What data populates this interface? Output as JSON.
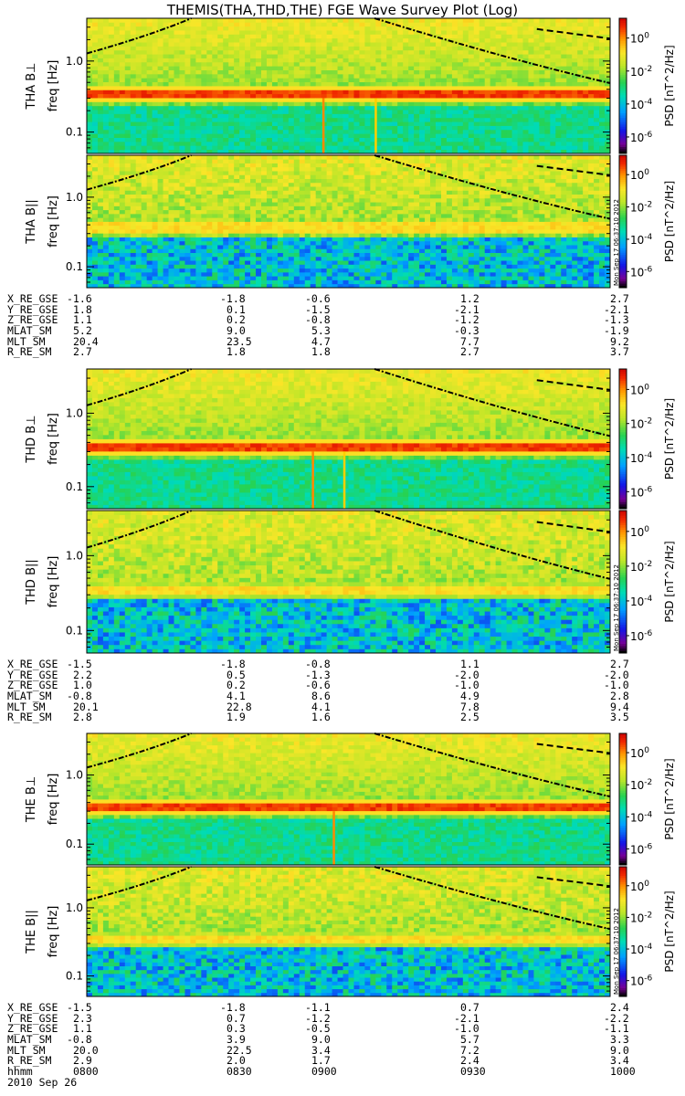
{
  "chart_data": {
    "type": "heatmap",
    "title": "THEMIS(THA,THD,THE) FGE Wave Survey Plot (Log)",
    "date_label": "2010 Sep 26",
    "time_axis_label": "hhmm",
    "time_ticks": [
      "0800",
      "0830",
      "0900",
      "0930",
      "1000"
    ],
    "freq_axis_label": "freq [Hz]",
    "freq_ticks": [
      "1.0",
      "0.1"
    ],
    "freq_range_hz": [
      0.05,
      4.0
    ],
    "colorbar": {
      "label": "PSD [nT^2/Hz]",
      "ticks": [
        "10^0",
        "10^-2",
        "10^-4",
        "10^-6"
      ],
      "range_log10": [
        -7,
        1.2
      ],
      "scale": "rainbow"
    },
    "stamp": "Mon Sep 17 06:37:10 2012",
    "probes": [
      {
        "id": "THA",
        "panels": [
          {
            "name": "THA B⊥",
            "ylabel": "THA B⊥",
            "band_hz": 0.33,
            "band_intensity": "strong",
            "spikes": [
              0.45,
              0.55
            ],
            "lowfreq_level": "mid"
          },
          {
            "name": "THA B||",
            "ylabel": "THA B||",
            "band_hz": 0.37,
            "band_intensity": "weak",
            "spikes": [],
            "lowfreq_level": "low"
          }
        ],
        "ephemeris": [
          {
            "label": "X_RE_GSE",
            "values": [
              "-1.6",
              "-1.8",
              "-0.6",
              "1.2",
              "2.7"
            ]
          },
          {
            "label": "Y_RE_GSE",
            "values": [
              "1.8",
              "0.1",
              "-1.5",
              "-2.1",
              "-2.1"
            ]
          },
          {
            "label": "Z_RE_GSE",
            "values": [
              "1.1",
              "0.2",
              "-0.8",
              "-1.2",
              "-1.3"
            ]
          },
          {
            "label": "MLAT_SM",
            "values": [
              "5.2",
              "9.0",
              "5.3",
              "-0.3",
              "-1.9"
            ]
          },
          {
            "label": "MLT_SM",
            "values": [
              "20.4",
              "23.5",
              "4.7",
              "7.7",
              "9.2"
            ]
          },
          {
            "label": "R_RE_SM",
            "values": [
              "2.7",
              "1.8",
              "1.8",
              "2.7",
              "3.7"
            ]
          }
        ]
      },
      {
        "id": "THD",
        "panels": [
          {
            "name": "THD B⊥",
            "ylabel": "THD B⊥",
            "band_hz": 0.33,
            "band_intensity": "strong",
            "spikes": [
              0.43,
              0.49
            ],
            "lowfreq_level": "mid"
          },
          {
            "name": "THD B||",
            "ylabel": "THD B||",
            "band_hz": 0.36,
            "band_intensity": "weak",
            "spikes": [],
            "lowfreq_level": "low"
          }
        ],
        "ephemeris": [
          {
            "label": "X_RE_GSE",
            "values": [
              "-1.5",
              "-1.8",
              "-0.8",
              "1.1",
              "2.7"
            ]
          },
          {
            "label": "Y_RE_GSE",
            "values": [
              "2.2",
              "0.5",
              "-1.3",
              "-2.0",
              "-2.0"
            ]
          },
          {
            "label": "Z_RE_GSE",
            "values": [
              "1.0",
              "0.2",
              "-0.6",
              "-1.0",
              "-1.0"
            ]
          },
          {
            "label": "MLAT_SM",
            "values": [
              "-0.8",
              "4.1",
              "8.6",
              "4.9",
              "2.8"
            ]
          },
          {
            "label": "MLT_SM",
            "values": [
              "20.1",
              "22.8",
              "4.1",
              "7.8",
              "9.4"
            ]
          },
          {
            "label": "R_RE_SM",
            "values": [
              "2.8",
              "1.9",
              "1.6",
              "2.5",
              "3.5"
            ]
          }
        ]
      },
      {
        "id": "THE",
        "panels": [
          {
            "name": "THE B⊥",
            "ylabel": "THE B⊥",
            "band_hz": 0.34,
            "band_intensity": "strong",
            "spikes": [
              0.47
            ],
            "lowfreq_level": "mid"
          },
          {
            "name": "THE B||",
            "ylabel": "THE B||",
            "band_hz": 0.36,
            "band_intensity": "weak",
            "spikes": [],
            "lowfreq_level": "low"
          }
        ],
        "ephemeris": [
          {
            "label": "X_RE_GSE",
            "values": [
              "-1.5",
              "-1.8",
              "-1.1",
              "0.7",
              "2.4"
            ]
          },
          {
            "label": "Y_RE_GSE",
            "values": [
              "2.3",
              "0.7",
              "-1.2",
              "-2.1",
              "-2.2"
            ]
          },
          {
            "label": "Z_RE_GSE",
            "values": [
              "1.1",
              "0.3",
              "-0.5",
              "-1.0",
              "-1.1"
            ]
          },
          {
            "label": "MLAT_SM",
            "values": [
              "-0.8",
              "3.9",
              "9.0",
              "5.7",
              "3.3"
            ]
          },
          {
            "label": "MLT_SM",
            "values": [
              "20.0",
              "22.5",
              "3.4",
              "7.2",
              "9.0"
            ]
          },
          {
            "label": "R_RE_SM",
            "values": [
              "2.9",
              "2.0",
              "1.7",
              "2.4",
              "3.4"
            ]
          }
        ]
      }
    ]
  }
}
